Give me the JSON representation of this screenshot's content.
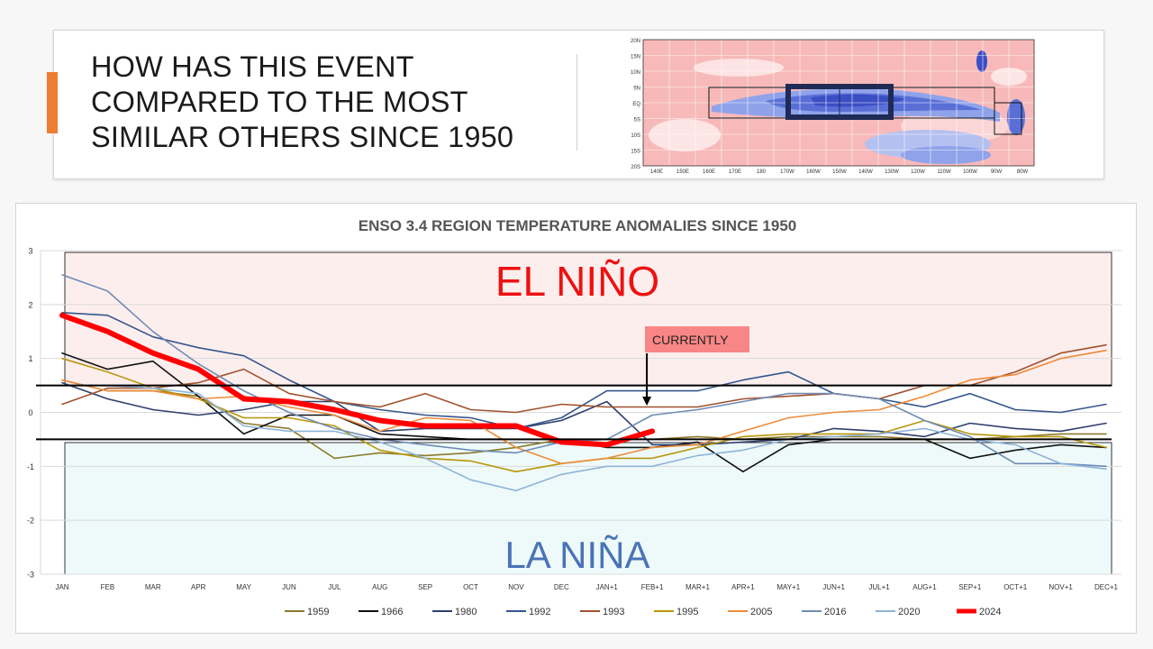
{
  "header": {
    "title_lines": [
      "HOW HAS THIS EVENT",
      "COMPARED TO THE MOST",
      "SIMILAR OTHERS SINCE 1950"
    ],
    "accent_color": "#ed7d31"
  },
  "map": {
    "lat_labels": [
      "20N",
      "15N",
      "10N",
      "5N",
      "EQ",
      "5S",
      "10S",
      "15S",
      "20S"
    ],
    "lon_labels": [
      "140E",
      "150E",
      "160E",
      "170E",
      "180",
      "170W",
      "160W",
      "150W",
      "140W",
      "130W",
      "120W",
      "110W",
      "100W",
      "90W",
      "80W"
    ]
  },
  "chart_data": {
    "type": "line",
    "title": "ENSO 3.4 REGION TEMPERATURE ANOMALIES SINCE 1950",
    "ylim": [
      -3,
      3
    ],
    "yticks": [
      "3",
      "2",
      "1",
      "0",
      "-1",
      "-2",
      "-3"
    ],
    "categories": [
      "JAN",
      "FEB",
      "MAR",
      "APR",
      "MAY",
      "JUN",
      "JUL",
      "AUG",
      "SEP",
      "OCT",
      "NOV",
      "DEC",
      "JAN+1",
      "FEB+1",
      "MAR+1",
      "APR+1",
      "MAY+1",
      "JUN+1",
      "JUL+1",
      "AUG+1",
      "SEP+1",
      "OCT+1",
      "NOV+1",
      "DEC+1"
    ],
    "thresholds": [
      0.5,
      -0.5
    ],
    "regions": {
      "el_nino": "EL NIÑO",
      "la_nina": "LA NIÑA"
    },
    "annotation": {
      "label": "CURRENTLY",
      "category": "FEB+1"
    },
    "series": [
      {
        "name": "1959",
        "color": "#8c7a2b",
        "width": 1.6,
        "values": [
          0.6,
          0.4,
          0.4,
          0.3,
          -0.2,
          -0.3,
          -0.85,
          -0.75,
          -0.8,
          -0.75,
          -0.65,
          -0.5,
          -0.5,
          -0.5,
          -0.45,
          -0.5,
          -0.45,
          -0.45,
          -0.45,
          -0.5,
          -0.5,
          -0.45,
          -0.4,
          -0.4
        ]
      },
      {
        "name": "1966",
        "color": "#111111",
        "width": 1.6,
        "values": [
          1.1,
          0.8,
          0.95,
          0.3,
          -0.4,
          -0.05,
          -0.05,
          -0.4,
          -0.45,
          -0.5,
          -0.5,
          -0.5,
          -0.65,
          -0.65,
          -0.55,
          -1.1,
          -0.6,
          -0.5,
          -0.5,
          -0.5,
          -0.85,
          -0.7,
          -0.6,
          -0.65
        ]
      },
      {
        "name": "1980",
        "color": "#2e3f6e",
        "width": 1.6,
        "values": [
          0.55,
          0.25,
          0.05,
          -0.05,
          0.05,
          0.2,
          0.2,
          -0.35,
          -0.3,
          -0.3,
          -0.3,
          -0.15,
          0.2,
          -0.6,
          -0.6,
          -0.55,
          -0.5,
          -0.3,
          -0.35,
          -0.45,
          -0.2,
          -0.3,
          -0.35,
          -0.2
        ]
      },
      {
        "name": "1992",
        "color": "#34568b",
        "width": 1.6,
        "values": [
          1.85,
          1.8,
          1.4,
          1.2,
          1.05,
          0.6,
          0.2,
          0.05,
          -0.05,
          -0.1,
          -0.3,
          -0.1,
          0.4,
          0.4,
          0.4,
          0.6,
          0.75,
          0.35,
          0.25,
          0.1,
          0.35,
          0.05,
          0.0,
          0.15
        ]
      },
      {
        "name": "1993",
        "color": "#a0522d",
        "width": 1.6,
        "values": [
          0.15,
          0.45,
          0.45,
          0.55,
          0.8,
          0.35,
          0.2,
          0.1,
          0.35,
          0.05,
          0.0,
          0.15,
          0.1,
          0.1,
          0.1,
          0.25,
          0.3,
          0.35,
          0.25,
          0.5,
          0.5,
          0.75,
          1.1,
          1.25
        ]
      },
      {
        "name": "1995",
        "color": "#b8960b",
        "width": 1.6,
        "values": [
          1.0,
          0.75,
          0.45,
          0.25,
          -0.1,
          -0.1,
          -0.25,
          -0.7,
          -0.85,
          -0.9,
          -1.1,
          -0.95,
          -0.85,
          -0.85,
          -0.65,
          -0.45,
          -0.4,
          -0.4,
          -0.4,
          -0.15,
          -0.4,
          -0.45,
          -0.45,
          -0.65
        ]
      },
      {
        "name": "2005",
        "color": "#ed8b3a",
        "width": 1.6,
        "values": [
          0.6,
          0.4,
          0.4,
          0.25,
          0.3,
          0.1,
          -0.05,
          -0.35,
          -0.1,
          -0.15,
          -0.65,
          -0.95,
          -0.85,
          -0.65,
          -0.6,
          -0.35,
          -0.1,
          0.0,
          0.05,
          0.3,
          0.6,
          0.7,
          1.0,
          1.15
        ]
      },
      {
        "name": "2016",
        "color": "#6f8bb5",
        "width": 1.6,
        "values": [
          2.55,
          2.25,
          1.5,
          0.9,
          0.4,
          0.0,
          -0.3,
          -0.5,
          -0.6,
          -0.7,
          -0.75,
          -0.55,
          -0.5,
          -0.05,
          0.05,
          0.2,
          0.35,
          0.35,
          0.25,
          -0.15,
          -0.45,
          -0.95,
          -0.95,
          -1.0
        ]
      },
      {
        "name": "2020",
        "color": "#8fb4d8",
        "width": 1.6,
        "values": [
          0.5,
          0.5,
          0.45,
          0.35,
          -0.25,
          -0.35,
          -0.35,
          -0.55,
          -0.85,
          -1.25,
          -1.45,
          -1.15,
          -1.0,
          -1.0,
          -0.8,
          -0.7,
          -0.5,
          -0.45,
          -0.4,
          -0.3,
          -0.5,
          -0.6,
          -0.95,
          -1.05
        ]
      },
      {
        "name": "2024",
        "color": "#ff0000",
        "width": 6,
        "values": [
          1.8,
          1.5,
          1.1,
          0.8,
          0.25,
          0.2,
          0.05,
          -0.15,
          -0.25,
          -0.25,
          -0.25,
          -0.55,
          -0.6,
          -0.35,
          null,
          null,
          null,
          null,
          null,
          null,
          null,
          null,
          null,
          null
        ]
      }
    ]
  }
}
